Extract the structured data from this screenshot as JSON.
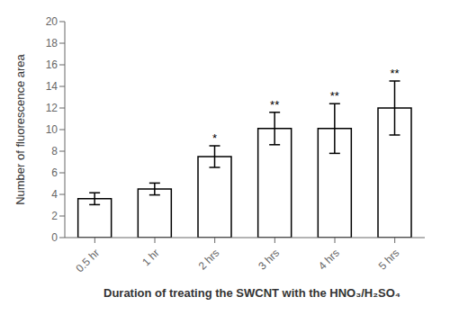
{
  "chart_data": {
    "type": "bar",
    "categories": [
      "0.5 hr",
      "1 hr",
      "2 hrs",
      "3 hrs",
      "4 hrs",
      "5 hrs"
    ],
    "values": [
      3.6,
      4.5,
      7.5,
      10.1,
      10.1,
      12.0
    ],
    "errors": [
      0.55,
      0.55,
      1.0,
      1.5,
      2.3,
      2.5
    ],
    "annotations": [
      {
        "category": "2 hrs",
        "text": "*"
      },
      {
        "category": "3 hrs",
        "text": "**"
      },
      {
        "category": "4 hrs",
        "text": "**"
      },
      {
        "category": "5 hrs",
        "text": "**"
      }
    ],
    "color": "#ffffff",
    "xlabel": "Duration of treating the SWCNT with the HNO₃/H₂SO₄",
    "ylabel": "Number of fluorescence area",
    "ylim": [
      0,
      20
    ],
    "yticks": [
      0,
      2,
      4,
      6,
      8,
      10,
      12,
      14,
      16,
      18,
      20
    ],
    "grid": false
  }
}
